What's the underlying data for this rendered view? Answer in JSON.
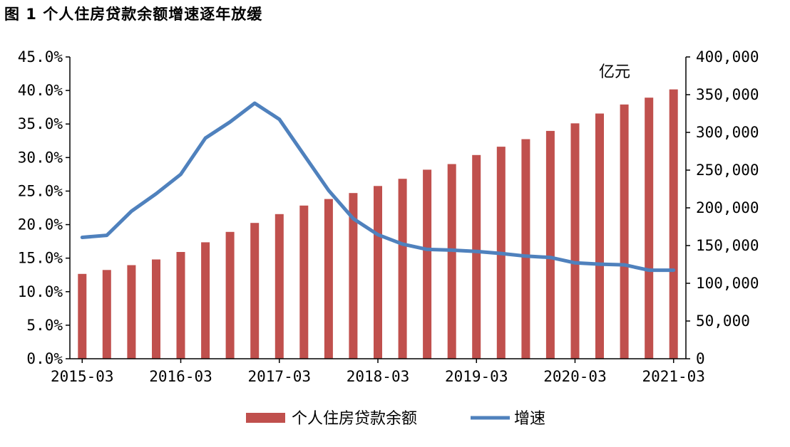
{
  "title": "图 1 个人住房贷款余额增速逐年放缓",
  "chart_data": {
    "type": "bar",
    "title": "图 1 个人住房贷款余额增速逐年放缓",
    "x": [
      "2015-03",
      "2015-06",
      "2015-09",
      "2015-12",
      "2016-03",
      "2016-06",
      "2016-09",
      "2016-12",
      "2017-03",
      "2017-06",
      "2017-09",
      "2017-12",
      "2018-03",
      "2018-06",
      "2018-09",
      "2018-12",
      "2019-03",
      "2019-06",
      "2019-09",
      "2019-12",
      "2020-03",
      "2020-06",
      "2020-09",
      "2020-12",
      "2021-03"
    ],
    "x_tick_labels": [
      "2015-03",
      "2016-03",
      "2017-03",
      "2018-03",
      "2019-03",
      "2020-03",
      "2021-03"
    ],
    "series": [
      {
        "name": "个人住房贷款余额",
        "type": "bar",
        "axis": "right",
        "color": "#c0504d",
        "values": [
          112500,
          117600,
          124100,
          131600,
          141500,
          154300,
          168100,
          180000,
          191700,
          203000,
          211700,
          219600,
          229000,
          238500,
          250600,
          258000,
          270000,
          281000,
          291000,
          302000,
          312000,
          325000,
          337000,
          346000,
          357000
        ]
      },
      {
        "name": "增速",
        "type": "line",
        "axis": "left",
        "color": "#4f81bd",
        "values": [
          18.1,
          18.4,
          22.0,
          24.6,
          27.5,
          32.9,
          35.3,
          38.1,
          35.7,
          30.4,
          25.1,
          20.9,
          18.5,
          17.1,
          16.3,
          16.2,
          16.0,
          15.7,
          15.3,
          15.1,
          14.3,
          14.1,
          14.0,
          13.2,
          13.2
        ]
      }
    ],
    "y_left": {
      "ylim": [
        0,
        45
      ],
      "ticks": [
        "0.0%",
        "5.0%",
        "10.0%",
        "15.0%",
        "20.0%",
        "25.0%",
        "30.0%",
        "35.0%",
        "40.0%",
        "45.0%"
      ]
    },
    "y_right": {
      "ylim": [
        0,
        400000
      ],
      "unit": "亿元",
      "ticks": [
        "0",
        "50,000",
        "100,000",
        "150,000",
        "200,000",
        "250,000",
        "300,000",
        "350,000",
        "400,000"
      ]
    },
    "legend": {
      "placement": "bottom",
      "items": [
        "个人住房贷款余额",
        "增速"
      ]
    },
    "grid": false
  }
}
